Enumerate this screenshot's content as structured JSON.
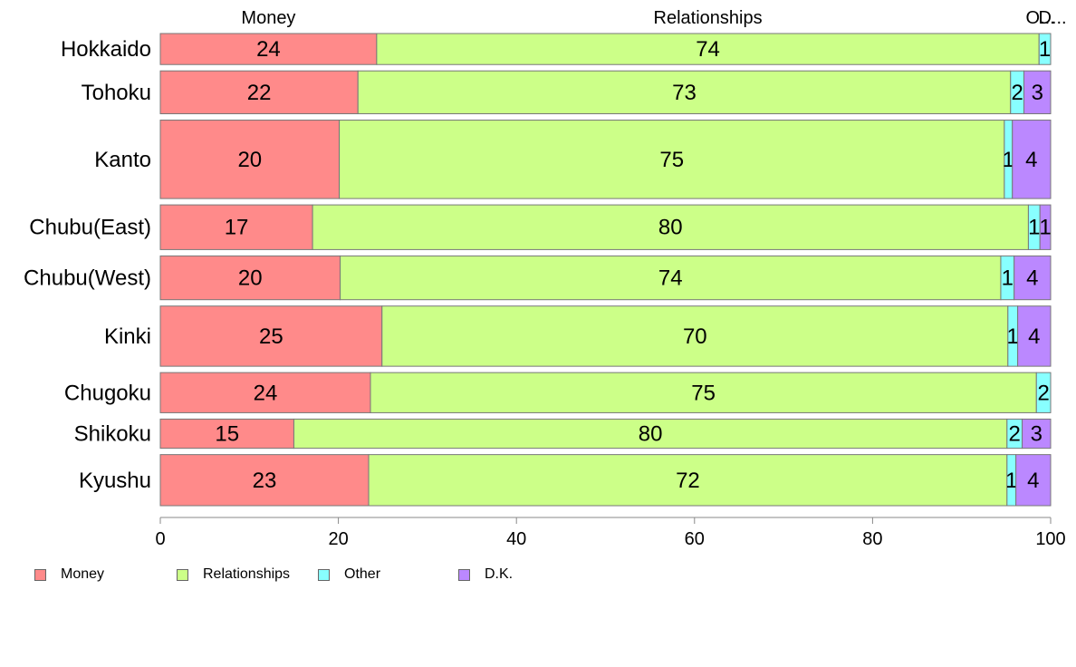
{
  "chart_data": {
    "type": "bar",
    "orientation": "horizontal",
    "stacked": true,
    "categories": [
      "Hokkaido",
      "Tohoku",
      "Kanto",
      "Chubu(East)",
      "Chubu(West)",
      "Kinki",
      "Chugoku",
      "Shikoku",
      "Kyushu"
    ],
    "series": [
      {
        "name": "Money",
        "color": "#ff8a8a",
        "values": [
          24.3,
          22.2,
          20.1,
          17.1,
          20.2,
          24.9,
          23.6,
          15.0,
          23.4
        ]
      },
      {
        "name": "Relationships",
        "color": "#ccff88",
        "values": [
          74.4,
          73.3,
          74.7,
          80.4,
          74.2,
          70.3,
          74.8,
          80.1,
          71.7
        ]
      },
      {
        "name": "Other",
        "color": "#88ffff",
        "values": [
          1.3,
          1.5,
          0.9,
          1.3,
          1.5,
          1.1,
          1.6,
          1.7,
          1.0
        ]
      },
      {
        "name": "D.K.",
        "color": "#bb88ff",
        "values": [
          0.0,
          3.0,
          4.3,
          1.2,
          4.1,
          3.7,
          0.0,
          3.2,
          3.9
        ]
      }
    ],
    "data_labels": [
      [
        "24",
        "74",
        "1",
        ""
      ],
      [
        "22",
        "73",
        "2",
        "3"
      ],
      [
        "20",
        "75",
        "1",
        "4"
      ],
      [
        "17",
        "80",
        "1",
        "1"
      ],
      [
        "20",
        "74",
        "1",
        "4"
      ],
      [
        "25",
        "70",
        "1",
        "4"
      ],
      [
        "24",
        "75",
        "2",
        ""
      ],
      [
        "15",
        "80",
        "2",
        "3"
      ],
      [
        "23",
        "72",
        "1",
        "4"
      ]
    ],
    "row_weights": [
      34,
      47,
      86,
      49,
      48,
      66,
      44,
      32,
      56
    ],
    "top_labels": [
      "Money",
      "Relationships",
      "O...",
      "D..."
    ],
    "x_ticks": [
      "0",
      "20",
      "40",
      "60",
      "80",
      "100"
    ],
    "xlim": [
      0,
      100
    ],
    "legend_position": "bottom-left",
    "grid": false
  }
}
